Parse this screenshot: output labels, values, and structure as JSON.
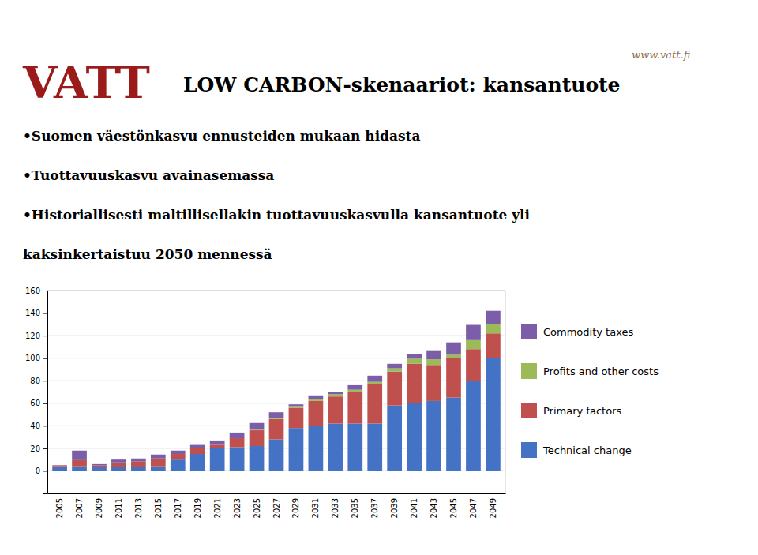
{
  "chart_data": {
    "type": "bar",
    "stacked": true,
    "title": "LOW CARBON-skenaariot: kansantuote",
    "annotations": [
      "VATT",
      "www.vatt.fi",
      "•Suomen väestönkasvu ennusteiden mukaan hidasta",
      "•Tuottavuuskasvu avainasemassa",
      "•Historiallisesti maltillisellakin tuottavuuskasvulla kansantuote yli",
      "kaksinkertaistuu 2050 mennessä"
    ],
    "categories": [
      2005,
      2007,
      2009,
      2011,
      2013,
      2015,
      2017,
      2019,
      2021,
      2023,
      2025,
      2027,
      2029,
      2031,
      2033,
      2035,
      2037,
      2039,
      2041,
      2043,
      2045,
      2047,
      2049
    ],
    "series": [
      {
        "name": "Technical change",
        "color": "#4472C4",
        "values": [
          4.0,
          4.0,
          3.5,
          3.5,
          3.5,
          4.0,
          10.0,
          15.0,
          20.0,
          21.0,
          22.0,
          28.0,
          38.0,
          40.0,
          42.0,
          42.0,
          42.0,
          58.0,
          60.0,
          62.0,
          65.0,
          80.0,
          100.0
        ]
      },
      {
        "name": "Primary factors",
        "color": "#C0504D",
        "values": [
          1.0,
          5.5,
          1.5,
          4.0,
          5.0,
          7.0,
          5.0,
          5.0,
          3.0,
          8.0,
          14.0,
          18.0,
          18.0,
          22.0,
          24.0,
          28.0,
          35.0,
          30.0,
          35.0,
          32.0,
          35.0,
          28.0,
          22.0
        ]
      },
      {
        "name": "Profits and other costs",
        "color": "#9BBB59",
        "values": [
          0.0,
          0.0,
          0.0,
          0.0,
          0.0,
          0.0,
          0.0,
          0.0,
          0.0,
          0.0,
          0.5,
          1.0,
          1.5,
          2.0,
          2.0,
          2.0,
          2.0,
          3.0,
          4.5,
          5.0,
          3.0,
          8.0,
          8.0
        ]
      },
      {
        "name": "Commodity taxes",
        "color": "#7B5EA7",
        "values": [
          0.0,
          8.5,
          1.0,
          2.5,
          2.5,
          3.5,
          3.0,
          3.0,
          4.0,
          5.0,
          6.0,
          5.0,
          1.5,
          3.0,
          2.0,
          4.0,
          5.5,
          4.0,
          4.0,
          8.0,
          11.0,
          13.5,
          12.0
        ]
      }
    ],
    "ylim": [
      -20,
      160
    ],
    "yticks": [
      0,
      20,
      40,
      60,
      80,
      100,
      120,
      140,
      160
    ],
    "grid": true
  }
}
